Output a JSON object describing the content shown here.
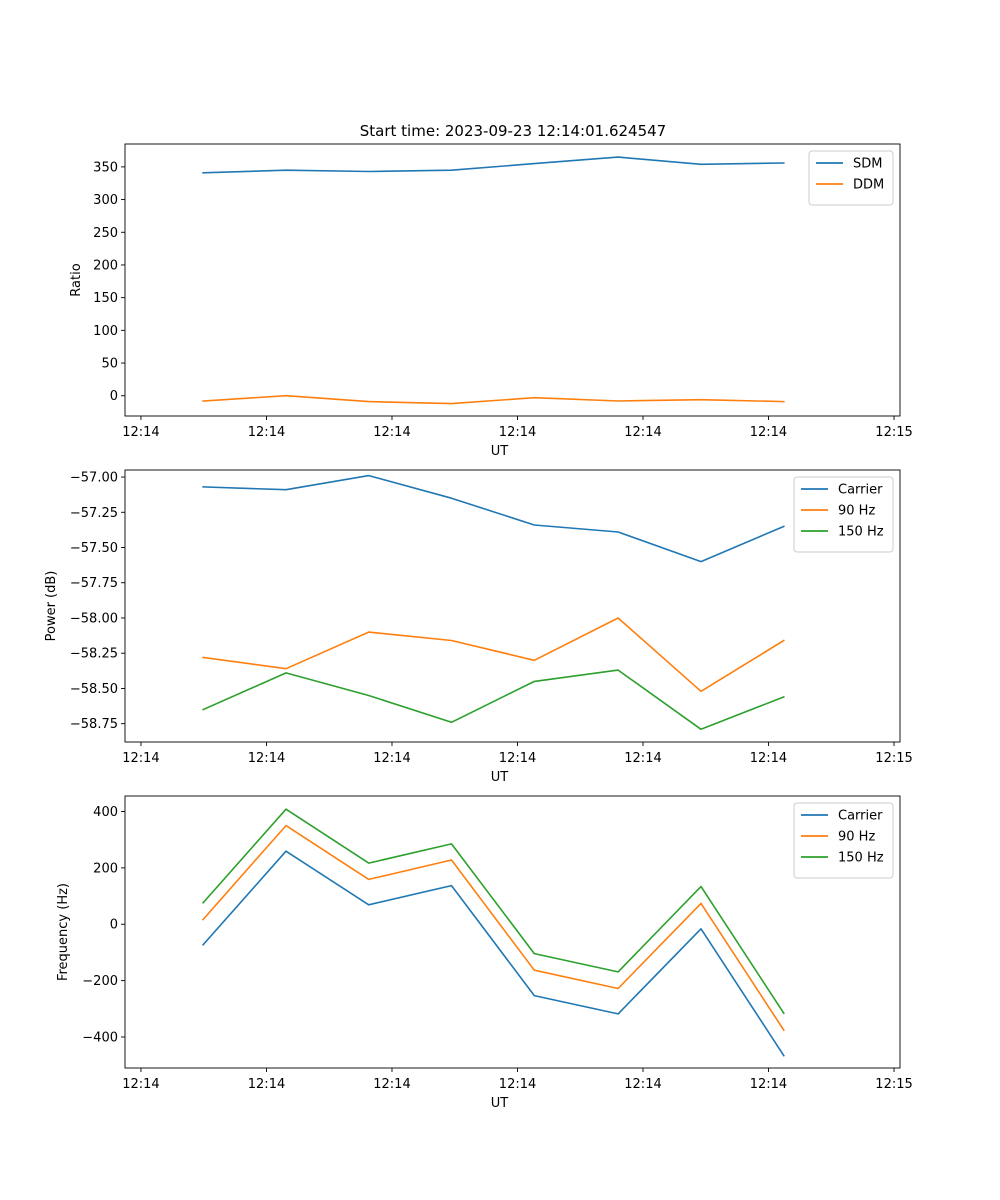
{
  "figure": {
    "title": "Start time: 2023-09-23 12:14:01.624547"
  },
  "chart_data": [
    {
      "type": "line",
      "xlabel": "UT",
      "ylabel": "Ratio",
      "x_ticks": [
        "12:14",
        "12:14",
        "12:14",
        "12:14",
        "12:14",
        "12:14",
        "12:15"
      ],
      "ylim": [
        -31,
        385
      ],
      "y_ticks": [
        0,
        50,
        100,
        150,
        200,
        250,
        300,
        350
      ],
      "y_tick_labels": [
        "0",
        "50",
        "100",
        "150",
        "200",
        "250",
        "300",
        "350"
      ],
      "legend_position": "top-right",
      "series": [
        {
          "name": "SDM",
          "color": "#1f77b4",
          "values": [
            341,
            345,
            343,
            345,
            355,
            365,
            354,
            356
          ]
        },
        {
          "name": "DDM",
          "color": "#ff7f0e",
          "values": [
            -8,
            0,
            -9,
            -12,
            -3,
            -8,
            -6,
            -9
          ]
        }
      ]
    },
    {
      "type": "line",
      "xlabel": "UT",
      "ylabel": "Power (dB)",
      "x_ticks": [
        "12:14",
        "12:14",
        "12:14",
        "12:14",
        "12:14",
        "12:14",
        "12:15"
      ],
      "ylim": [
        -58.88,
        -56.95
      ],
      "y_ticks": [
        -57.0,
        -57.25,
        -57.5,
        -57.75,
        -58.0,
        -58.25,
        -58.5,
        -58.75
      ],
      "y_tick_labels": [
        "−57.00",
        "−57.25",
        "−57.50",
        "−57.75",
        "−58.00",
        "−58.25",
        "−58.50",
        "−58.75"
      ],
      "legend_position": "top-right",
      "series": [
        {
          "name": "Carrier",
          "color": "#1f77b4",
          "values": [
            -57.07,
            -57.09,
            -56.99,
            -57.15,
            -57.34,
            -57.39,
            -57.6,
            -57.35
          ]
        },
        {
          "name": "90 Hz",
          "color": "#ff7f0e",
          "values": [
            -58.28,
            -58.36,
            -58.1,
            -58.16,
            -58.3,
            -58.0,
            -58.52,
            -58.16
          ]
        },
        {
          "name": "150 Hz",
          "color": "#2ca02c",
          "values": [
            -58.65,
            -58.39,
            -58.55,
            -58.74,
            -58.45,
            -58.37,
            -58.79,
            -58.56
          ]
        }
      ]
    },
    {
      "type": "line",
      "xlabel": "UT",
      "ylabel": "Frequency (Hz)",
      "x_ticks": [
        "12:14",
        "12:14",
        "12:14",
        "12:14",
        "12:14",
        "12:14",
        "12:15"
      ],
      "ylim": [
        -510,
        455
      ],
      "y_ticks": [
        -400,
        -200,
        0,
        200,
        400
      ],
      "y_tick_labels": [
        "−400",
        "−200",
        "0",
        "200",
        "400"
      ],
      "legend_position": "top-right",
      "series": [
        {
          "name": "Carrier",
          "color": "#1f77b4",
          "values": [
            -73,
            259,
            69,
            137,
            -253,
            -318,
            -16,
            -466
          ]
        },
        {
          "name": "90 Hz",
          "color": "#ff7f0e",
          "values": [
            17,
            350,
            159,
            228,
            -163,
            -228,
            74,
            -376
          ]
        },
        {
          "name": "150 Hz",
          "color": "#2ca02c",
          "values": [
            76,
            408,
            217,
            285,
            -104,
            -169,
            134,
            -316
          ]
        }
      ]
    }
  ]
}
